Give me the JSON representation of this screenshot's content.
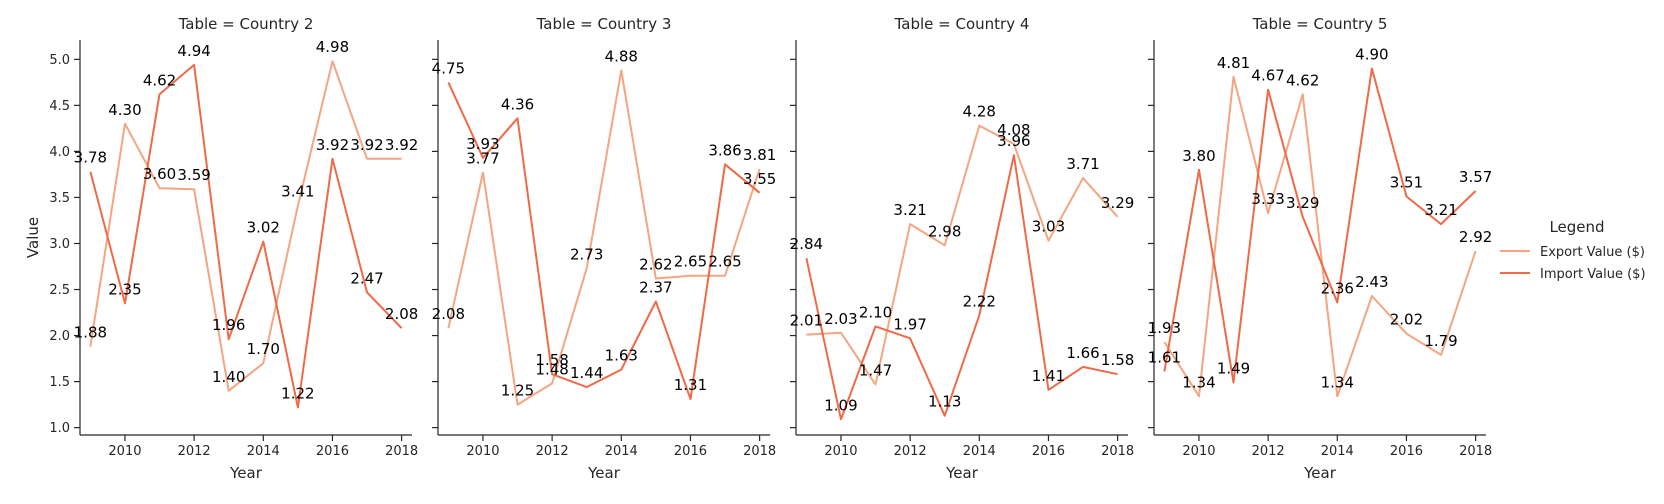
{
  "chart_data": {
    "type": "line",
    "ylabel": "Value",
    "xlabel": "Year",
    "xlim": [
      2008.7,
      2018.3
    ],
    "ylim": [
      0.92,
      5.21
    ],
    "xticks": [
      2010,
      2012,
      2014,
      2016,
      2018
    ],
    "yticks": [
      1.0,
      1.5,
      2.0,
      2.5,
      3.0,
      3.5,
      4.0,
      4.5,
      5.0
    ],
    "ytick_labels": [
      "1.0",
      "1.5",
      "2.0",
      "2.5",
      "3.0",
      "3.5",
      "4.0",
      "4.5",
      "5.0"
    ],
    "x": [
      2009,
      2010,
      2011,
      2012,
      2013,
      2014,
      2015,
      2016,
      2017,
      2018
    ],
    "legend": {
      "title": "Legend",
      "placement": "right",
      "entries": [
        "Export Value ($)",
        "Import Value ($)"
      ]
    },
    "series_colors": [
      "#f4a582",
      "#ef6a47"
    ],
    "panels": [
      {
        "title": "Table = Country 2",
        "series": [
          {
            "name": "Export Value ($)",
            "values": [
              1.88,
              4.3,
              3.6,
              3.59,
              1.4,
              1.7,
              3.41,
              4.98,
              3.92,
              3.92
            ]
          },
          {
            "name": "Import Value ($)",
            "values": [
              3.78,
              2.35,
              4.62,
              4.94,
              1.96,
              3.02,
              1.22,
              3.92,
              2.47,
              2.08
            ]
          }
        ]
      },
      {
        "title": "Table = Country 3",
        "series": [
          {
            "name": "Export Value ($)",
            "values": [
              2.08,
              3.77,
              1.25,
              1.48,
              2.73,
              4.88,
              2.62,
              2.65,
              2.65,
              3.81
            ]
          },
          {
            "name": "Import Value ($)",
            "values": [
              4.75,
              3.93,
              4.36,
              1.58,
              1.44,
              1.63,
              2.37,
              1.31,
              3.86,
              3.55
            ]
          }
        ]
      },
      {
        "title": "Table = Country 4",
        "series": [
          {
            "name": "Export Value ($)",
            "values": [
              2.01,
              2.03,
              1.47,
              3.21,
              2.98,
              4.28,
              4.08,
              3.03,
              3.71,
              3.29
            ]
          },
          {
            "name": "Import Value ($)",
            "values": [
              2.84,
              1.09,
              2.1,
              1.97,
              1.13,
              2.22,
              3.96,
              1.41,
              1.66,
              1.58
            ]
          }
        ]
      },
      {
        "title": "Table = Country 5",
        "series": [
          {
            "name": "Export Value ($)",
            "values": [
              1.93,
              1.34,
              4.81,
              3.33,
              4.62,
              1.34,
              2.43,
              2.02,
              1.79,
              2.92
            ]
          },
          {
            "name": "Import Value ($)",
            "values": [
              1.61,
              3.8,
              1.49,
              4.67,
              3.29,
              2.36,
              4.9,
              3.51,
              3.21,
              3.57
            ]
          }
        ]
      }
    ]
  }
}
